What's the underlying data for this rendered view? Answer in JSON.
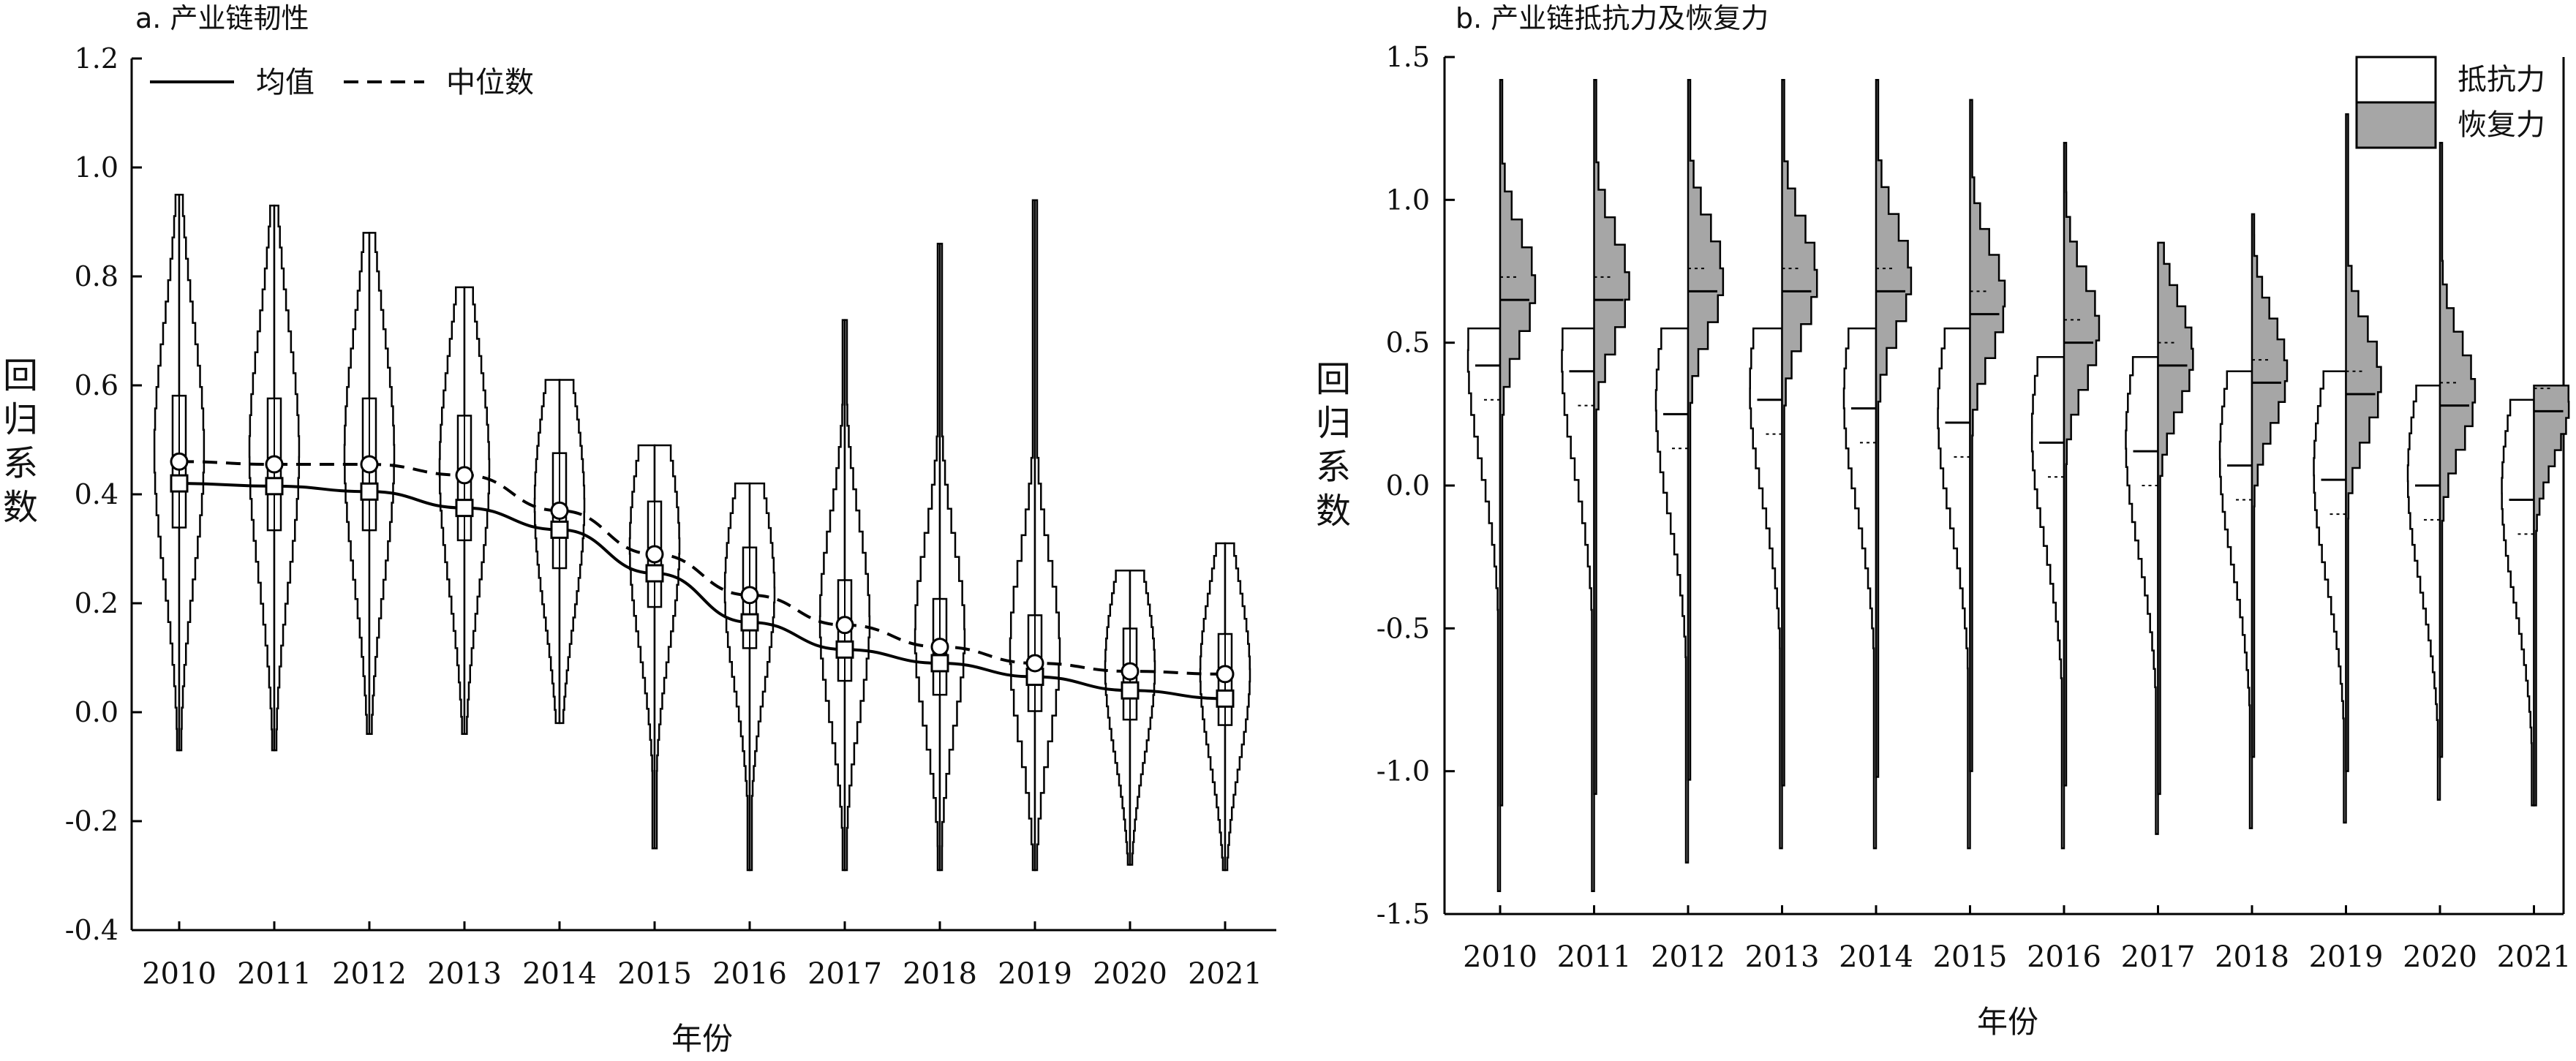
{
  "chart_data": [
    {
      "type": "violin",
      "panel": "a",
      "title": "a. 产业链韧性",
      "xlabel": "年份",
      "ylabel": [
        "回",
        "归",
        "系",
        "数"
      ],
      "ylim": [
        -0.4,
        1.2
      ],
      "yticks": [
        "-0.4",
        "-0.2",
        "0.0",
        "0.2",
        "0.4",
        "0.6",
        "0.8",
        "1.0",
        "1.2"
      ],
      "categories": [
        "2010",
        "2011",
        "2012",
        "2013",
        "2014",
        "2015",
        "2016",
        "2017",
        "2018",
        "2019",
        "2020",
        "2021"
      ],
      "legend": {
        "position": "top-left",
        "entries": [
          "均值",
          "中位数"
        ]
      },
      "series": [
        {
          "name": "均值",
          "style": "solid",
          "values": [
            0.42,
            0.415,
            0.405,
            0.375,
            0.335,
            0.255,
            0.165,
            0.115,
            0.09,
            0.065,
            0.04,
            0.025
          ]
        },
        {
          "name": "中位数",
          "style": "dashed",
          "values": [
            0.46,
            0.455,
            0.455,
            0.435,
            0.37,
            0.29,
            0.215,
            0.16,
            0.12,
            0.09,
            0.075,
            0.07
          ]
        }
      ],
      "violins": [
        {
          "min": -0.07,
          "max": 0.95,
          "center": 0.46,
          "spread": 0.55
        },
        {
          "min": -0.07,
          "max": 0.93,
          "center": 0.455,
          "spread": 0.55
        },
        {
          "min": -0.04,
          "max": 0.88,
          "center": 0.455,
          "spread": 0.55
        },
        {
          "min": -0.04,
          "max": 0.78,
          "center": 0.43,
          "spread": 0.52
        },
        {
          "min": -0.02,
          "max": 0.61,
          "center": 0.37,
          "spread": 0.48
        },
        {
          "min": -0.25,
          "max": 0.49,
          "center": 0.29,
          "spread": 0.44
        },
        {
          "min": -0.29,
          "max": 0.42,
          "center": 0.21,
          "spread": 0.42
        },
        {
          "min": -0.29,
          "max": 0.72,
          "center": 0.15,
          "spread": 0.42
        },
        {
          "min": -0.29,
          "max": 0.86,
          "center": 0.12,
          "spread": 0.4
        },
        {
          "min": -0.29,
          "max": 0.94,
          "center": 0.09,
          "spread": 0.4
        },
        {
          "min": -0.28,
          "max": 0.26,
          "center": 0.07,
          "spread": 0.38
        },
        {
          "min": -0.29,
          "max": 0.31,
          "center": 0.06,
          "spread": 0.38
        }
      ]
    },
    {
      "type": "split-violin",
      "panel": "b",
      "title": "b. 产业链抵抗力及恢复力",
      "xlabel": "年份",
      "ylabel": [
        "回",
        "归",
        "系",
        "数"
      ],
      "ylim": [
        -1.5,
        1.5
      ],
      "yticks": [
        "-1.5",
        "-1.0",
        "-0.5",
        "0.0",
        "0.5",
        "1.0",
        "1.5"
      ],
      "categories": [
        "2010",
        "2011",
        "2012",
        "2013",
        "2014",
        "2015",
        "2016",
        "2017",
        "2018",
        "2019",
        "2020",
        "2021"
      ],
      "legend": {
        "position": "top-right",
        "entries": [
          "抵抗力",
          "恢复力"
        ]
      },
      "series": [
        {
          "name": "抵抗力",
          "fill": "#ffffff",
          "min": [
            -1.42,
            -1.42,
            -1.32,
            -1.27,
            -1.27,
            -1.27,
            -1.27,
            -1.22,
            -1.2,
            -1.18,
            -1.1,
            -1.12
          ],
          "max": [
            0.55,
            0.55,
            0.55,
            0.55,
            0.55,
            0.55,
            0.45,
            0.45,
            0.4,
            0.4,
            0.35,
            0.3
          ],
          "center": [
            0.42,
            0.4,
            0.25,
            0.3,
            0.27,
            0.22,
            0.15,
            0.12,
            0.07,
            0.02,
            0.0,
            -0.05
          ]
        },
        {
          "name": "恢复力",
          "fill": "#a6a6a6",
          "min": [
            -1.12,
            -1.08,
            -1.03,
            -1.05,
            -1.02,
            -1.0,
            -1.05,
            -1.08,
            -0.95,
            -1.0,
            -0.95,
            -1.12
          ],
          "max": [
            1.42,
            1.42,
            1.42,
            1.42,
            1.42,
            1.35,
            1.2,
            0.85,
            0.95,
            1.3,
            1.2,
            0.35
          ],
          "center": [
            0.65,
            0.65,
            0.68,
            0.68,
            0.68,
            0.6,
            0.5,
            0.42,
            0.36,
            0.32,
            0.28,
            0.26
          ]
        }
      ]
    }
  ]
}
